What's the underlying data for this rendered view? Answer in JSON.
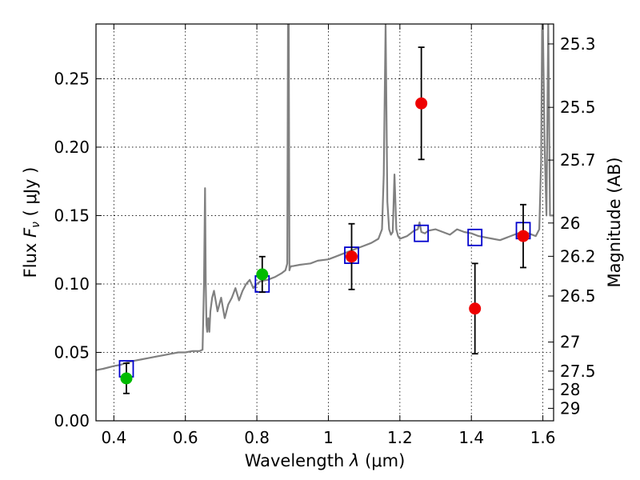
{
  "chart_data": {
    "type": "scatter",
    "xlabel_text": "Wavelength  ",
    "xlabel_symbol": "λ",
    "xlabel_unit": " (μm)",
    "ylabel_text": "Flux  ",
    "ylabel_symbol_main": "F",
    "ylabel_symbol_sub": "ν",
    "ylabel_unit": "  ( μJy )",
    "y2label": "Magnitude (AB)",
    "xlim": [
      0.35,
      1.63
    ],
    "ylim": [
      0.0,
      0.29
    ],
    "grid": true,
    "x_ticks": [
      0.4,
      0.6,
      0.8,
      1.0,
      1.2,
      1.4,
      1.6
    ],
    "x_tick_labels": [
      "0.4",
      "0.6",
      "0.8",
      "1",
      "1.2",
      "1.4",
      "1.6"
    ],
    "y_ticks": [
      0.0,
      0.05,
      0.1,
      0.15,
      0.2,
      0.25
    ],
    "y_tick_labels": [
      "0.00",
      "0.05",
      "0.10",
      "0.15",
      "0.20",
      "0.25"
    ],
    "y2_ticks": [
      25.3,
      25.5,
      25.7,
      26,
      26.2,
      26.5,
      27,
      27.5,
      28,
      29
    ],
    "y2_tick_labels": [
      "25.3",
      "25.5",
      "25.7",
      "26",
      "26.2",
      "26.5",
      "27",
      "27.5",
      "28",
      "29"
    ],
    "colors": {
      "spectrum": "#808080",
      "model_box": "#0000cc",
      "green": "#00bb00",
      "red": "#ee0000",
      "errorbar": "#000000"
    },
    "series": [
      {
        "kind": "line",
        "x": [
          0.35,
          0.37,
          0.4,
          0.42,
          0.44,
          0.46,
          0.48,
          0.5,
          0.52,
          0.54,
          0.56,
          0.58,
          0.6,
          0.62,
          0.64,
          0.648,
          0.652,
          0.655,
          0.657,
          0.659,
          0.661,
          0.664,
          0.667,
          0.67,
          0.675,
          0.68,
          0.69,
          0.7,
          0.71,
          0.72,
          0.73,
          0.74,
          0.75,
          0.76,
          0.77,
          0.78,
          0.79,
          0.8,
          0.81,
          0.83,
          0.85,
          0.87,
          0.88,
          0.885,
          0.887,
          0.889,
          0.891,
          0.893,
          0.896,
          0.9,
          0.92,
          0.95,
          0.97,
          1.0,
          1.02,
          1.04,
          1.06,
          1.08,
          1.1,
          1.12,
          1.14,
          1.15,
          1.155,
          1.16,
          1.165,
          1.17,
          1.175,
          1.18,
          1.185,
          1.19,
          1.195,
          1.2,
          1.21,
          1.22,
          1.23,
          1.24,
          1.25,
          1.255,
          1.26,
          1.27,
          1.28,
          1.3,
          1.32,
          1.34,
          1.36,
          1.38,
          1.4,
          1.42,
          1.44,
          1.46,
          1.48,
          1.5,
          1.52,
          1.54,
          1.56,
          1.58,
          1.59,
          1.595,
          1.598,
          1.6,
          1.605,
          1.61,
          1.615,
          1.62,
          1.63
        ],
        "y": [
          0.037,
          0.038,
          0.04,
          0.041,
          0.043,
          0.044,
          0.045,
          0.046,
          0.047,
          0.048,
          0.049,
          0.05,
          0.05,
          0.051,
          0.051,
          0.052,
          0.1,
          0.17,
          0.1,
          0.07,
          0.065,
          0.075,
          0.065,
          0.08,
          0.09,
          0.095,
          0.08,
          0.09,
          0.075,
          0.085,
          0.09,
          0.097,
          0.088,
          0.095,
          0.1,
          0.103,
          0.097,
          0.1,
          0.102,
          0.103,
          0.105,
          0.108,
          0.11,
          0.115,
          0.29,
          0.29,
          0.11,
          0.112,
          0.113,
          0.113,
          0.114,
          0.115,
          0.117,
          0.118,
          0.12,
          0.122,
          0.124,
          0.126,
          0.128,
          0.13,
          0.133,
          0.14,
          0.18,
          0.29,
          0.16,
          0.14,
          0.136,
          0.138,
          0.18,
          0.14,
          0.135,
          0.133,
          0.134,
          0.135,
          0.137,
          0.139,
          0.14,
          0.145,
          0.138,
          0.137,
          0.139,
          0.14,
          0.138,
          0.136,
          0.14,
          0.138,
          0.137,
          0.135,
          0.134,
          0.133,
          0.132,
          0.134,
          0.136,
          0.138,
          0.137,
          0.135,
          0.14,
          0.19,
          0.29,
          0.29,
          0.2,
          0.15,
          0.29,
          0.15,
          0.15
        ]
      },
      {
        "kind": "box",
        "x": [
          0.435,
          0.815,
          1.065,
          1.26,
          1.41,
          1.545
        ],
        "y": [
          0.038,
          0.1,
          0.121,
          0.137,
          0.134,
          0.139
        ]
      },
      {
        "kind": "point",
        "color": "green",
        "x": [
          0.435,
          0.815
        ],
        "y": [
          0.031,
          0.107
        ],
        "err": [
          0.011,
          0.013
        ]
      },
      {
        "kind": "point",
        "color": "red",
        "x": [
          1.065,
          1.26,
          1.41,
          1.545
        ],
        "y": [
          0.12,
          0.232,
          0.082,
          0.135
        ],
        "err": [
          0.024,
          0.041,
          0.033,
          0.023
        ]
      }
    ]
  }
}
